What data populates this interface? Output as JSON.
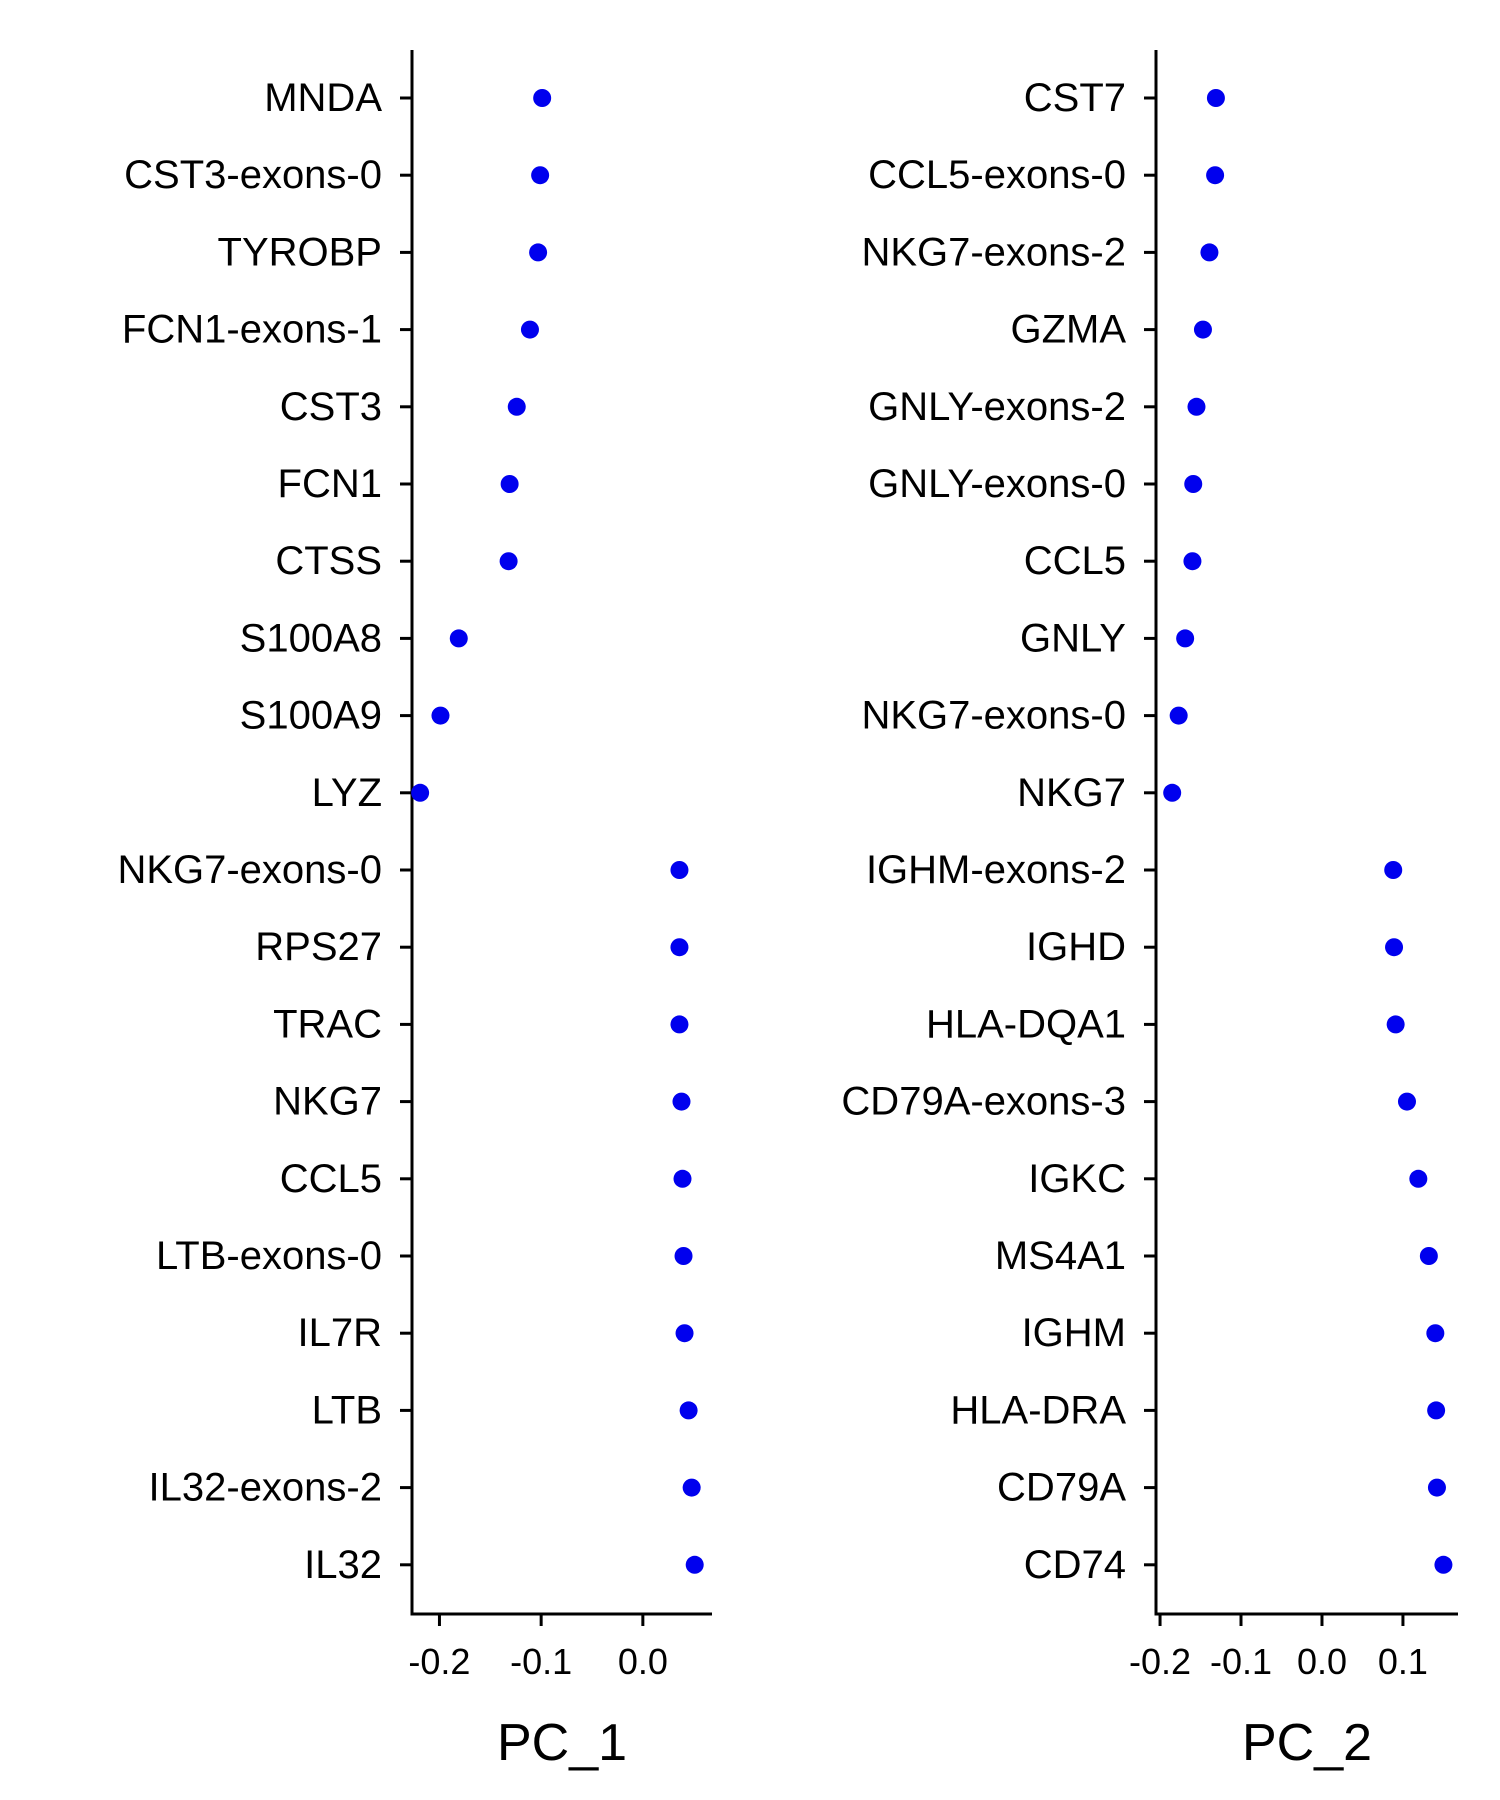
{
  "colors": {
    "point": "#0000ee",
    "axis": "#000000"
  },
  "chart_data": [
    {
      "type": "scatter",
      "xlabel": "PC_1",
      "xticks": [
        -0.2,
        -0.1,
        0.0
      ],
      "xtick_labels": [
        "-0.2",
        "-0.1",
        "0.0"
      ],
      "xlim": [
        -0.227,
        0.068
      ],
      "genes": [
        "MNDA",
        "CST3-exons-0",
        "TYROBP",
        "FCN1-exons-1",
        "CST3",
        "FCN1",
        "CTSS",
        "S100A8",
        "S100A9",
        "LYZ",
        "NKG7-exons-0",
        "RPS27",
        "TRAC",
        "NKG7",
        "CCL5",
        "LTB-exons-0",
        "IL7R",
        "LTB",
        "IL32-exons-2",
        "IL32"
      ],
      "values": [
        -0.099,
        -0.101,
        -0.103,
        -0.111,
        -0.124,
        -0.131,
        -0.132,
        -0.181,
        -0.199,
        -0.219,
        0.036,
        0.036,
        0.036,
        0.038,
        0.039,
        0.04,
        0.041,
        0.045,
        0.048,
        0.051
      ]
    },
    {
      "type": "scatter",
      "xlabel": "PC_2",
      "xticks": [
        -0.2,
        -0.1,
        0.0,
        0.1
      ],
      "xtick_labels": [
        "-0.2",
        "-0.1",
        "0.0",
        "0.1"
      ],
      "xlim": [
        -0.205,
        0.168
      ],
      "genes": [
        "CST7",
        "CCL5-exons-0",
        "NKG7-exons-2",
        "GZMA",
        "GNLY-exons-2",
        "GNLY-exons-0",
        "CCL5",
        "GNLY",
        "NKG7-exons-0",
        "NKG7",
        "IGHM-exons-2",
        "IGHD",
        "HLA-DQA1",
        "CD79A-exons-3",
        "IGKC",
        "MS4A1",
        "IGHM",
        "HLA-DRA",
        "CD79A",
        "CD74"
      ],
      "values": [
        -0.131,
        -0.132,
        -0.139,
        -0.147,
        -0.155,
        -0.159,
        -0.16,
        -0.169,
        -0.177,
        -0.185,
        0.088,
        0.089,
        0.091,
        0.105,
        0.119,
        0.132,
        0.14,
        0.141,
        0.142,
        0.15
      ]
    }
  ]
}
